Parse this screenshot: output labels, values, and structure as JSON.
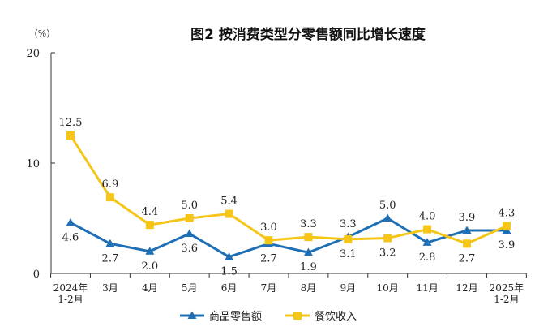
{
  "chart_data": {
    "type": "line",
    "title": "图2 按消费类型分零售额同比增长速度",
    "unit_label": "（%）",
    "ylim": [
      0,
      20
    ],
    "yticks": [
      "0",
      "10",
      "20"
    ],
    "categories": [
      [
        "2024年",
        "1-2月"
      ],
      [
        "3月"
      ],
      [
        "4月"
      ],
      [
        "5月"
      ],
      [
        "6月"
      ],
      [
        "7月"
      ],
      [
        "8月"
      ],
      [
        "9月"
      ],
      [
        "10月"
      ],
      [
        "11月"
      ],
      [
        "12月"
      ],
      [
        "2025年",
        "1-2月"
      ]
    ],
    "series": [
      {
        "name": "商品零售额",
        "color": "#1f6fb5",
        "marker": "triangle",
        "values": [
          4.6,
          2.7,
          2.0,
          3.6,
          1.5,
          2.7,
          1.9,
          3.3,
          5.0,
          2.8,
          3.9,
          3.9
        ],
        "labels": [
          "4.6",
          "2.7",
          "2.0",
          "3.6",
          "1.5",
          "2.7",
          "1.9",
          "3.3",
          "5.0",
          "2.8",
          "3.9",
          "3.9"
        ]
      },
      {
        "name": "餐饮收入",
        "color": "#f5c518",
        "marker": "square",
        "values": [
          12.5,
          6.9,
          4.4,
          5.0,
          5.4,
          3.0,
          3.3,
          3.1,
          3.2,
          4.0,
          2.7,
          4.3
        ],
        "labels": [
          "12.5",
          "6.9",
          "4.4",
          "5.0",
          "5.4",
          "3.0",
          "3.3",
          "3.1",
          "3.2",
          "4.0",
          "2.7",
          "4.3"
        ]
      }
    ],
    "legend_position": "bottom"
  }
}
